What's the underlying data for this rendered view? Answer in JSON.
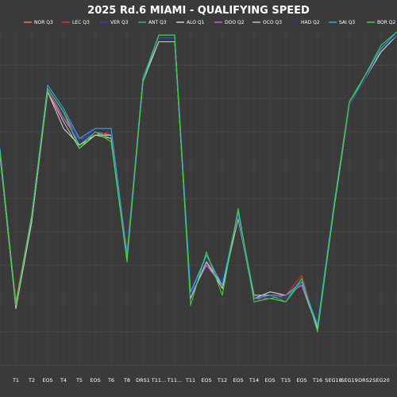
{
  "chart_data": {
    "type": "line",
    "title": "2025 Rd.6 MIAMI - QUALIFYING SPEED",
    "xlabel": "",
    "ylabel": "",
    "grid": true,
    "legend_position": "top",
    "ylim": [
      0,
      100
    ],
    "categories": [
      "",
      "T1",
      "T2",
      "EOS",
      "T4",
      "T5",
      "EOS",
      "T6",
      "T8",
      "DRS1",
      "T11...",
      "T11...",
      "T11",
      "EOS",
      "T12",
      "EOS",
      "T14",
      "EOS",
      "T15",
      "EOS",
      "T16",
      "SEG18",
      "SEG19",
      "DRS2",
      "SEG20",
      ""
    ],
    "series": [
      {
        "name": "NOR Q3",
        "color": "#ff6a3d",
        "values": [
          64,
          19,
          45,
          83,
          76,
          67,
          70,
          69,
          33,
          85,
          98,
          98,
          21,
          30,
          24,
          46,
          20,
          20,
          21,
          25,
          12,
          47,
          79,
          87,
          94,
          99
        ]
      },
      {
        "name": "LEC Q3",
        "color": "#e52e2e",
        "values": [
          63,
          18,
          44,
          82,
          74,
          68,
          69,
          70,
          34,
          86,
          98,
          98,
          20,
          32,
          23,
          45,
          20,
          22,
          21,
          27,
          11,
          46,
          78,
          86,
          95,
          99
        ]
      },
      {
        "name": "VER Q3",
        "color": "#2f3fd8",
        "values": [
          65,
          17,
          44,
          84,
          77,
          67,
          71,
          71,
          32,
          86,
          99,
          99,
          22,
          31,
          25,
          44,
          19,
          21,
          20,
          26,
          12,
          47,
          78,
          86,
          95,
          100
        ]
      },
      {
        "name": "ANT Q3",
        "color": "#2fb87a",
        "values": [
          64,
          18,
          45,
          83,
          75,
          66,
          70,
          68,
          33,
          86,
          98,
          98,
          21,
          33,
          24,
          46,
          21,
          21,
          19,
          25,
          11,
          46,
          78,
          87,
          94,
          99
        ]
      },
      {
        "name": "ALO Q1",
        "color": "#cfcfcf",
        "values": [
          63,
          17,
          43,
          82,
          71,
          66,
          69,
          69,
          33,
          85,
          98,
          98,
          20,
          31,
          23,
          44,
          20,
          22,
          21,
          24,
          11,
          46,
          78,
          86,
          94,
          99
        ]
      },
      {
        "name": "DOO Q2",
        "color": "#e04fd8",
        "values": [
          64,
          18,
          44,
          83,
          74,
          67,
          70,
          70,
          33,
          86,
          98,
          98,
          21,
          30,
          24,
          45,
          20,
          21,
          21,
          24,
          12,
          47,
          78,
          86,
          95,
          99
        ]
      },
      {
        "name": "OCO Q3",
        "color": "#bdbdbd",
        "values": [
          63,
          18,
          44,
          82,
          73,
          65,
          69,
          68,
          32,
          85,
          97,
          97,
          20,
          31,
          24,
          44,
          21,
          21,
          20,
          25,
          11,
          46,
          78,
          86,
          94,
          99
        ]
      },
      {
        "name": "HAD Q2",
        "color": "#1f3a8f",
        "values": [
          64,
          18,
          45,
          83,
          75,
          67,
          70,
          70,
          33,
          86,
          98,
          98,
          21,
          32,
          25,
          45,
          20,
          21,
          20,
          25,
          12,
          47,
          78,
          86,
          95,
          99
        ]
      },
      {
        "name": "SAI Q3",
        "color": "#2aa7e8",
        "values": [
          65,
          18,
          45,
          84,
          77,
          68,
          71,
          71,
          33,
          86,
          99,
          99,
          22,
          33,
          24,
          46,
          20,
          21,
          21,
          25,
          12,
          47,
          79,
          87,
          95,
          100
        ]
      },
      {
        "name": "BOR Q2",
        "color": "#3bd52e",
        "values": [
          64,
          18,
          45,
          83,
          76,
          65,
          70,
          67,
          31,
          85,
          99,
          99,
          18,
          34,
          21,
          47,
          19,
          20,
          19,
          26,
          10,
          46,
          79,
          87,
          96,
          100
        ]
      }
    ]
  }
}
